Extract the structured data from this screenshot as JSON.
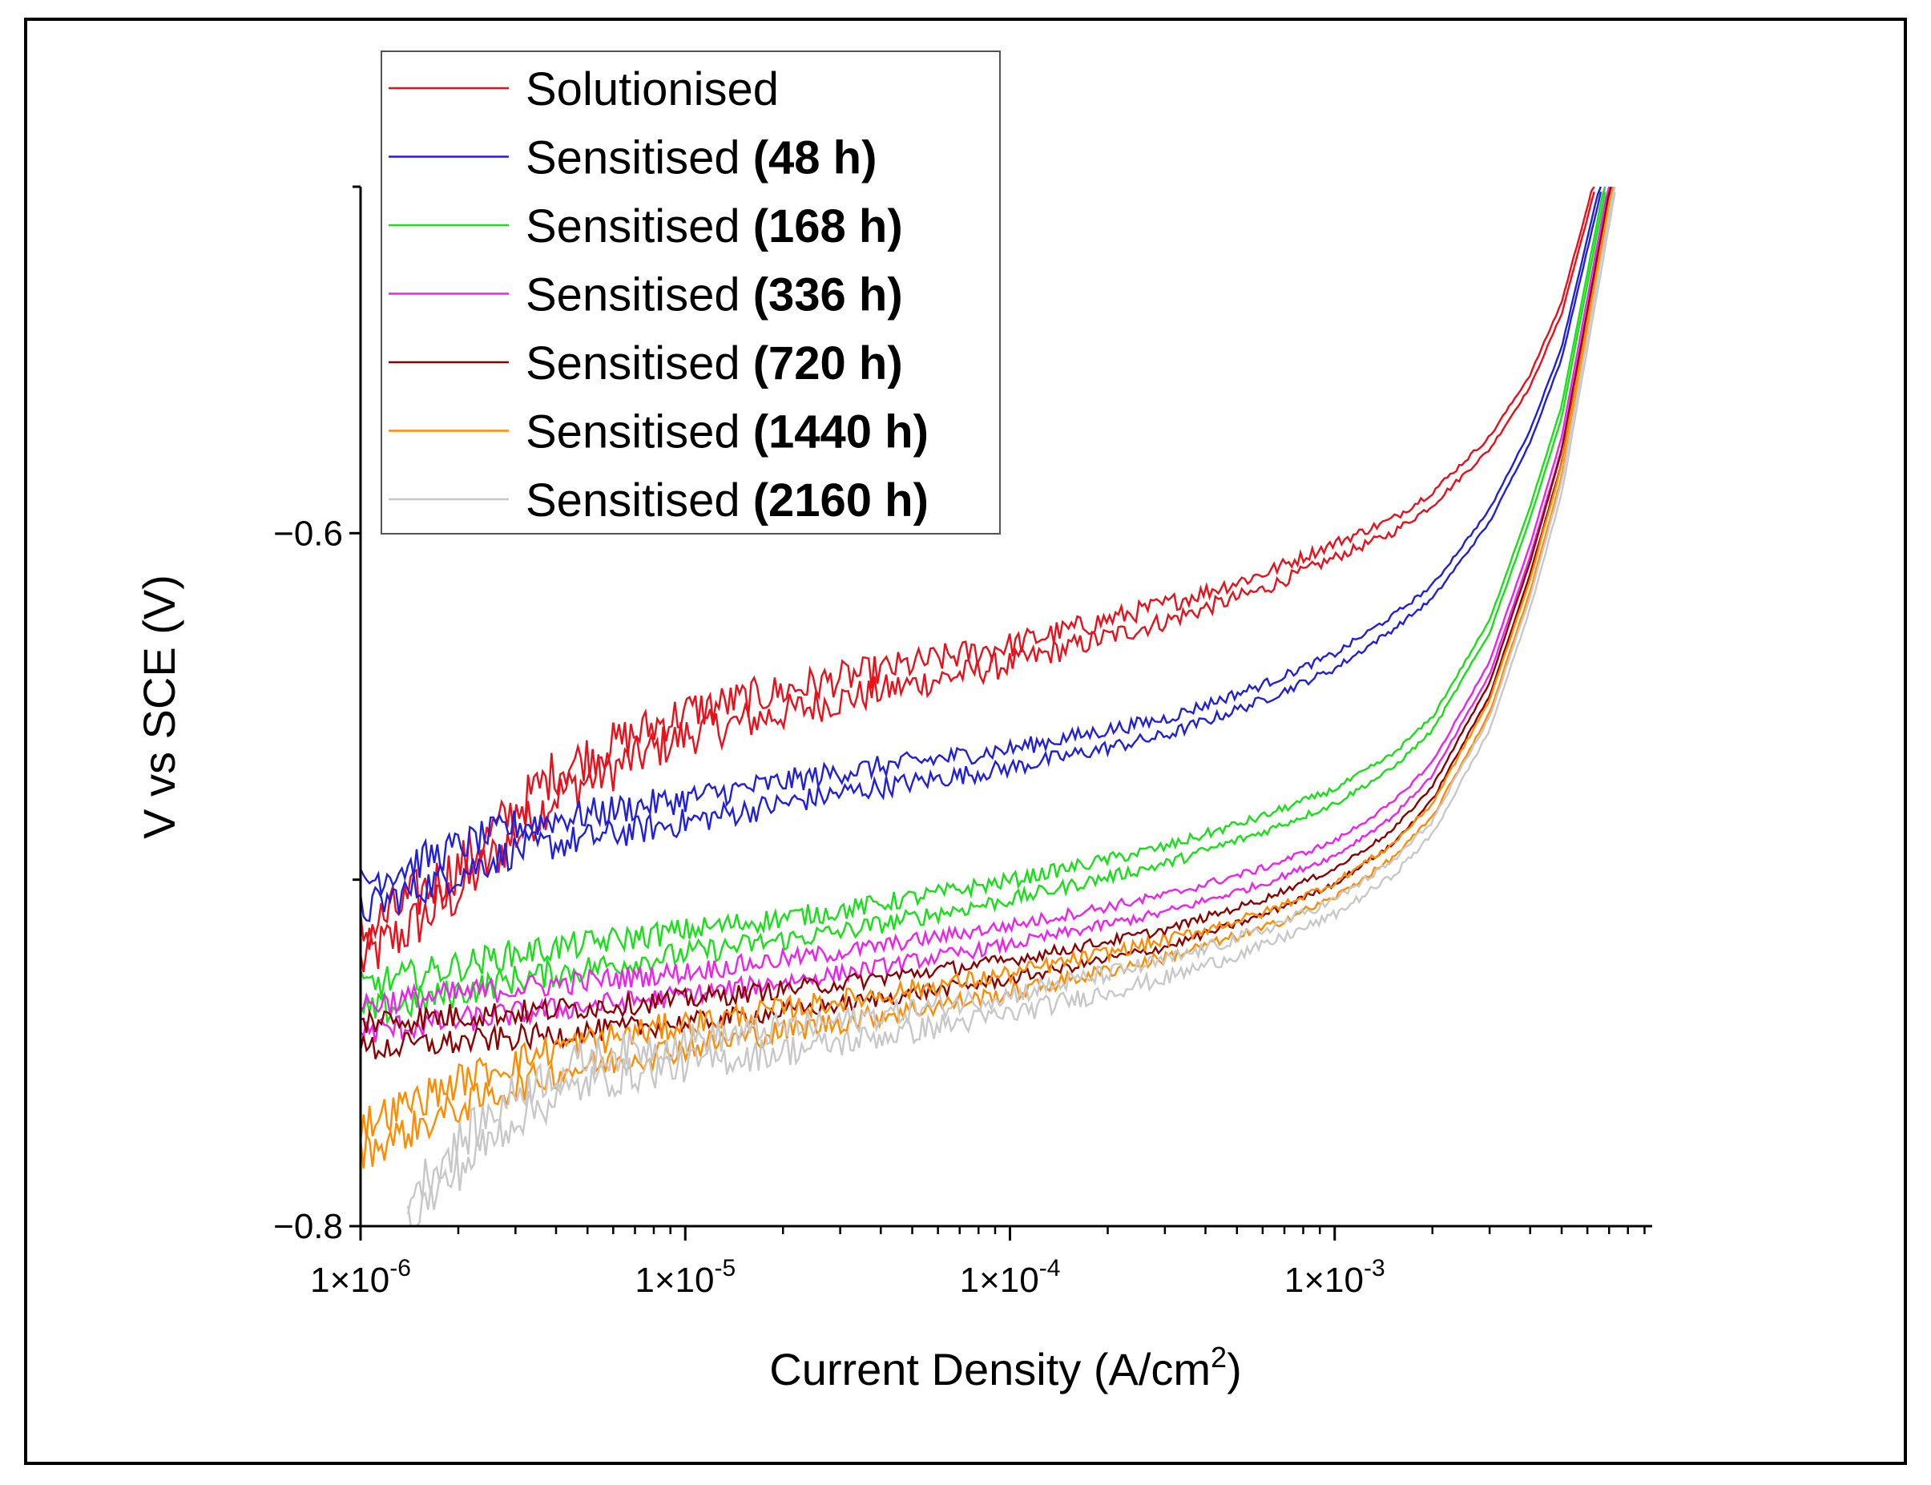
{
  "chart_data": {
    "type": "line",
    "title": "",
    "xlabel": "Current Density (A/cm",
    "xlabel_sup": "2",
    "xlabel_end": ")",
    "ylabel": "V vs SCE (V)",
    "xscale": "log",
    "xlim": [
      1e-06,
      0.0095
    ],
    "ylim": [
      -0.8,
      -0.5
    ],
    "x_ticks": [
      {
        "value": 1e-06,
        "base": "1×10",
        "exp": "-6"
      },
      {
        "value": 1e-05,
        "base": "1×10",
        "exp": "-5"
      },
      {
        "value": 0.0001,
        "base": "1×10",
        "exp": "-4"
      },
      {
        "value": 0.001,
        "base": "1×10",
        "exp": "-3"
      }
    ],
    "y_ticks": [
      {
        "value": -0.6,
        "label": "−0.6"
      },
      {
        "value": -0.8,
        "label": "−0.8"
      }
    ],
    "y_minor_ticks": [
      -0.5,
      -0.7
    ],
    "legend_position": "top-left",
    "series": [
      {
        "name": "Solutionised",
        "bold": "",
        "color": "#e8101a",
        "noise": 0.012,
        "points": [
          [
            1e-06,
            -0.72
          ],
          [
            2e-06,
            -0.7
          ],
          [
            4e-06,
            -0.672
          ],
          [
            1e-05,
            -0.655
          ],
          [
            3e-05,
            -0.645
          ],
          [
            0.0001,
            -0.635
          ],
          [
            0.0003,
            -0.623
          ],
          [
            0.0006,
            -0.614
          ],
          [
            0.001,
            -0.605
          ],
          [
            0.0015,
            -0.598
          ],
          [
            0.002,
            -0.59
          ],
          [
            0.003,
            -0.574
          ],
          [
            0.004,
            -0.556
          ],
          [
            0.005,
            -0.535
          ],
          [
            0.0063,
            -0.5
          ]
        ]
      },
      {
        "name": "Sensitised ",
        "bold": "(48 h)",
        "color": "#1f1fdc",
        "noise": 0.008,
        "points": [
          [
            1e-06,
            -0.705
          ],
          [
            3e-06,
            -0.688
          ],
          [
            1e-05,
            -0.68
          ],
          [
            3e-05,
            -0.672
          ],
          [
            0.0001,
            -0.665
          ],
          [
            0.0003,
            -0.656
          ],
          [
            0.0006,
            -0.646
          ],
          [
            0.001,
            -0.637
          ],
          [
            0.0015,
            -0.626
          ],
          [
            0.002,
            -0.617
          ],
          [
            0.003,
            -0.595
          ],
          [
            0.004,
            -0.572
          ],
          [
            0.005,
            -0.548
          ],
          [
            0.0066,
            -0.5
          ]
        ]
      },
      {
        "name": "Sensitised ",
        "bold": "(168 h)",
        "color": "#18e018",
        "noise": 0.007,
        "points": [
          [
            1e-06,
            -0.735
          ],
          [
            3e-06,
            -0.725
          ],
          [
            1e-05,
            -0.718
          ],
          [
            3e-05,
            -0.712
          ],
          [
            0.0001,
            -0.703
          ],
          [
            0.0003,
            -0.693
          ],
          [
            0.0006,
            -0.684
          ],
          [
            0.001,
            -0.676
          ],
          [
            0.0015,
            -0.666
          ],
          [
            0.002,
            -0.655
          ],
          [
            0.003,
            -0.627
          ],
          [
            0.004,
            -0.594
          ],
          [
            0.005,
            -0.565
          ],
          [
            0.0068,
            -0.5
          ]
        ]
      },
      {
        "name": "Sensitised ",
        "bold": "(336 h)",
        "color": "#ee22ee",
        "noise": 0.006,
        "points": [
          [
            1e-06,
            -0.74
          ],
          [
            3e-06,
            -0.735
          ],
          [
            1e-05,
            -0.73
          ],
          [
            3e-05,
            -0.724
          ],
          [
            0.0001,
            -0.716
          ],
          [
            0.0003,
            -0.707
          ],
          [
            0.0006,
            -0.699
          ],
          [
            0.001,
            -0.691
          ],
          [
            0.0015,
            -0.68
          ],
          [
            0.002,
            -0.668
          ],
          [
            0.003,
            -0.639
          ],
          [
            0.004,
            -0.605
          ],
          [
            0.005,
            -0.574
          ],
          [
            0.007,
            -0.5
          ]
        ]
      },
      {
        "name": "Sensitised ",
        "bold": "(720 h)",
        "color": "#8b0000",
        "noise": 0.006,
        "points": [
          [
            1e-06,
            -0.745
          ],
          [
            3e-06,
            -0.742
          ],
          [
            1e-05,
            -0.738
          ],
          [
            3e-05,
            -0.733
          ],
          [
            0.0001,
            -0.726
          ],
          [
            0.0003,
            -0.717
          ],
          [
            0.0006,
            -0.708
          ],
          [
            0.001,
            -0.699
          ],
          [
            0.0015,
            -0.688
          ],
          [
            0.002,
            -0.675
          ],
          [
            0.003,
            -0.645
          ],
          [
            0.004,
            -0.61
          ],
          [
            0.005,
            -0.578
          ],
          [
            0.0071,
            -0.5
          ]
        ]
      },
      {
        "name": "Sensitised ",
        "bold": "(1440 h)",
        "color": "#ff8c00",
        "noise": 0.008,
        "points": [
          [
            1e-06,
            -0.775
          ],
          [
            2e-06,
            -0.762
          ],
          [
            4e-06,
            -0.752
          ],
          [
            1e-05,
            -0.745
          ],
          [
            3e-05,
            -0.738
          ],
          [
            0.0001,
            -0.73
          ],
          [
            0.0003,
            -0.72
          ],
          [
            0.0006,
            -0.712
          ],
          [
            0.001,
            -0.703
          ],
          [
            0.0015,
            -0.692
          ],
          [
            0.002,
            -0.68
          ],
          [
            0.003,
            -0.65
          ],
          [
            0.004,
            -0.615
          ],
          [
            0.005,
            -0.582
          ],
          [
            0.0072,
            -0.5
          ]
        ]
      },
      {
        "name": "Sensitised ",
        "bold": "(2160 h)",
        "color": "#c8c8c8",
        "noise": 0.01,
        "points": [
          [
            1.4e-06,
            -0.795
          ],
          [
            2e-06,
            -0.78
          ],
          [
            3e-06,
            -0.765
          ],
          [
            5e-06,
            -0.755
          ],
          [
            1e-05,
            -0.75
          ],
          [
            3e-05,
            -0.744
          ],
          [
            0.0001,
            -0.736
          ],
          [
            0.0003,
            -0.726
          ],
          [
            0.0006,
            -0.717
          ],
          [
            0.001,
            -0.708
          ],
          [
            0.0015,
            -0.697
          ],
          [
            0.002,
            -0.685
          ],
          [
            0.003,
            -0.655
          ],
          [
            0.004,
            -0.62
          ],
          [
            0.005,
            -0.587
          ],
          [
            0.0073,
            -0.5
          ]
        ]
      }
    ]
  }
}
